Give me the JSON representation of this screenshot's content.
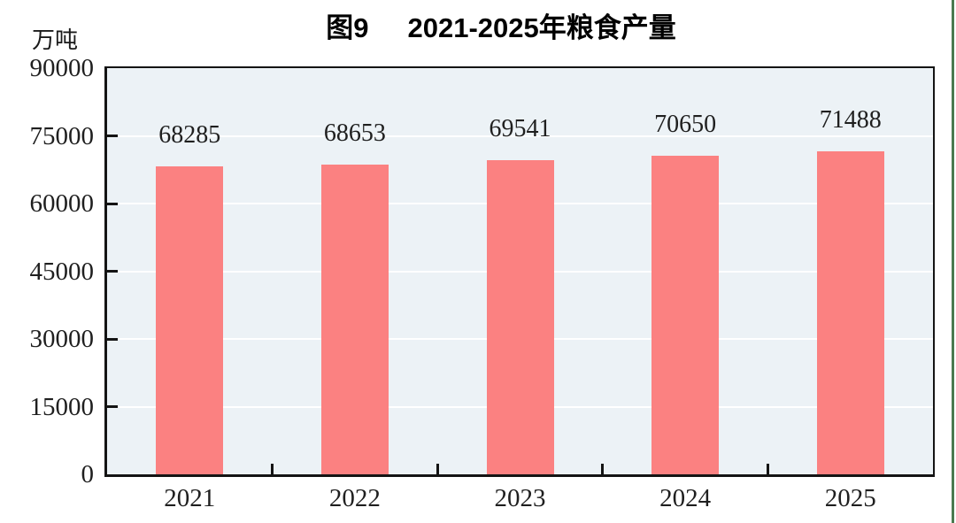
{
  "figure": {
    "title_prefix": "图9",
    "title_main": "2021-2025年粮食产量",
    "unit_label": "万吨"
  },
  "chart_data": {
    "type": "bar",
    "title": "图9 2021-2025年粮食产量",
    "ylabel": "万吨",
    "xlabel": "",
    "categories": [
      "2021",
      "2022",
      "2023",
      "2024",
      "2025"
    ],
    "values": [
      68285,
      68653,
      69541,
      70650,
      71488
    ],
    "ylim": [
      0,
      90000
    ],
    "yticks": [
      0,
      15000,
      30000,
      45000,
      60000,
      75000,
      90000
    ],
    "data_labels": [
      68285,
      68653,
      69541,
      70650,
      71488
    ],
    "legend": "none",
    "grid": "horizontal-white",
    "bar_color": "#FB8181",
    "plot_bg": "#ECF2F6",
    "gridline_color": "#FFFFFF",
    "axis_color": "#141414",
    "label_color": "#1f1f1f"
  },
  "page": {
    "edge_line_color": "#4B7A4F"
  }
}
